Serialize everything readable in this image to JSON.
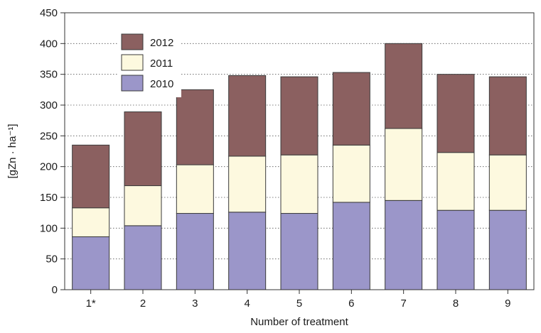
{
  "chart_data": {
    "type": "bar",
    "stacked": true,
    "title": "",
    "xlabel": "Number of treatment",
    "ylabel": "[gZn · ha⁻¹]",
    "categories": [
      "1*",
      "2",
      "3",
      "4",
      "5",
      "6",
      "7",
      "8",
      "9"
    ],
    "ylim": [
      0,
      450
    ],
    "yticks": [
      0,
      50,
      100,
      150,
      200,
      250,
      300,
      350,
      400,
      450
    ],
    "grid": "horizontal-dotted",
    "legend_position": "top-left",
    "legend_order": [
      "2012",
      "2011",
      "2010"
    ],
    "series": [
      {
        "name": "2010",
        "color": "#9b96c9",
        "values": [
          86,
          104,
          124,
          126,
          124,
          142,
          145,
          129,
          129
        ]
      },
      {
        "name": "2011",
        "color": "#fdf9df",
        "values": [
          47,
          65,
          79,
          91,
          95,
          93,
          117,
          94,
          90
        ]
      },
      {
        "name": "2012",
        "color": "#8b6060",
        "values": [
          102,
          120,
          122,
          131,
          127,
          118,
          138,
          127,
          127
        ]
      }
    ]
  }
}
